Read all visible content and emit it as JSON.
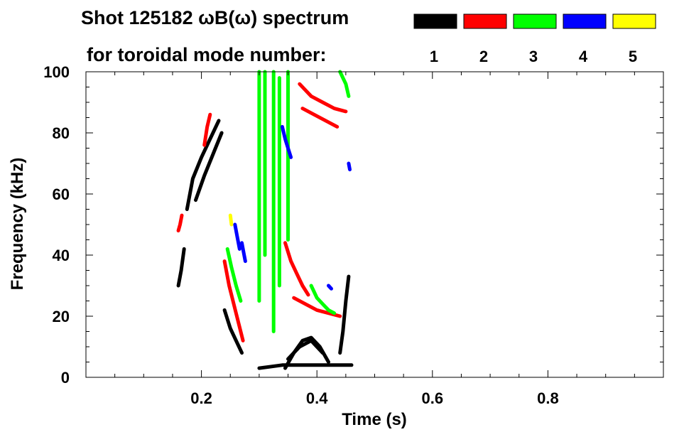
{
  "chart_data": {
    "type": "heatmap",
    "title": "Shot 125182 ωB(ω) spectrum",
    "subtitle": "for toroidal mode number:",
    "xlabel": "Time (s)",
    "ylabel": "Frequency (kHz)",
    "xlim": [
      0.0,
      1.0
    ],
    "ylim": [
      0,
      100
    ],
    "x_ticks": [
      0.2,
      0.4,
      0.6,
      0.8
    ],
    "x_tick_labels": [
      "0.2",
      "0.4",
      "0.6",
      "0.8"
    ],
    "y_ticks": [
      0,
      20,
      40,
      60,
      80,
      100
    ],
    "y_tick_labels": [
      "0",
      "20",
      "40",
      "60",
      "80",
      "100"
    ],
    "grid": false,
    "legend_position": "top-right",
    "legend": [
      {
        "label": "1",
        "color": "#000000"
      },
      {
        "label": "2",
        "color": "#ff0000"
      },
      {
        "label": "3",
        "color": "#00ff00"
      },
      {
        "label": "4",
        "color": "#0000ff"
      },
      {
        "label": "5",
        "color": "#ffff00"
      }
    ],
    "series": [
      {
        "mode": "1",
        "color": "#000000",
        "segments": [
          {
            "x": [
              0.16,
              0.165,
              0.17
            ],
            "y": [
              30,
              35,
              42
            ]
          },
          {
            "x": [
              0.175,
              0.185,
              0.2,
              0.215,
              0.23
            ],
            "y": [
              55,
              65,
              72,
              78,
              84
            ]
          },
          {
            "x": [
              0.19,
              0.205,
              0.22,
              0.235
            ],
            "y": [
              58,
              66,
              73,
              80
            ]
          },
          {
            "x": [
              0.24,
              0.25,
              0.26,
              0.27
            ],
            "y": [
              22,
              16,
              12,
              8
            ]
          },
          {
            "x": [
              0.3,
              0.34,
              0.38,
              0.42,
              0.46
            ],
            "y": [
              3,
              4,
              4,
              4,
              4
            ]
          },
          {
            "x": [
              0.345,
              0.36,
              0.375,
              0.39,
              0.405,
              0.42
            ],
            "y": [
              3,
              8,
              12,
              13,
              10,
              5
            ]
          },
          {
            "x": [
              0.35,
              0.37,
              0.39,
              0.41
            ],
            "y": [
              6,
              10,
              12,
              8
            ]
          },
          {
            "x": [
              0.44,
              0.445,
              0.45,
              0.455
            ],
            "y": [
              8,
              15,
              25,
              33
            ]
          }
        ]
      },
      {
        "mode": "2",
        "color": "#ff0000",
        "segments": [
          {
            "x": [
              0.16,
              0.163,
              0.166
            ],
            "y": [
              48,
              50,
              53
            ]
          },
          {
            "x": [
              0.205,
              0.21,
              0.215
            ],
            "y": [
              76,
              82,
              86
            ]
          },
          {
            "x": [
              0.24,
              0.248,
              0.256,
              0.264,
              0.272
            ],
            "y": [
              38,
              30,
              24,
              18,
              12
            ]
          },
          {
            "x": [
              0.345,
              0.355,
              0.365,
              0.375,
              0.385
            ],
            "y": [
              44,
              38,
              34,
              30,
              27
            ]
          },
          {
            "x": [
              0.36,
              0.38,
              0.4,
              0.42,
              0.44
            ],
            "y": [
              26,
              24,
              22,
              21,
              20
            ]
          },
          {
            "x": [
              0.37,
              0.39,
              0.41,
              0.43,
              0.45
            ],
            "y": [
              96,
              92,
              90,
              88,
              87
            ]
          },
          {
            "x": [
              0.375,
              0.395,
              0.415,
              0.435
            ],
            "y": [
              88,
              86,
              84,
              82
            ]
          }
        ]
      },
      {
        "mode": "3",
        "color": "#00ff00",
        "segments": [
          {
            "x": [
              0.245,
              0.252,
              0.26,
              0.268
            ],
            "y": [
              42,
              36,
              30,
              25
            ]
          },
          {
            "x": [
              0.3,
              0.3,
              0.3
            ],
            "y": [
              100,
              60,
              25
            ]
          },
          {
            "x": [
              0.31,
              0.31,
              0.31
            ],
            "y": [
              100,
              70,
              40
            ]
          },
          {
            "x": [
              0.325,
              0.325,
              0.325
            ],
            "y": [
              100,
              55,
              15
            ]
          },
          {
            "x": [
              0.335,
              0.335,
              0.335
            ],
            "y": [
              98,
              70,
              30
            ]
          },
          {
            "x": [
              0.35,
              0.35,
              0.35
            ],
            "y": [
              100,
              75,
              45
            ]
          },
          {
            "x": [
              0.39,
              0.4,
              0.41,
              0.42,
              0.43
            ],
            "y": [
              30,
              26,
              24,
              22,
              21
            ]
          },
          {
            "x": [
              0.44,
              0.45,
              0.455
            ],
            "y": [
              100,
              96,
              92
            ]
          }
        ]
      },
      {
        "mode": "4",
        "color": "#0000ff",
        "segments": [
          {
            "x": [
              0.34,
              0.345,
              0.35,
              0.355
            ],
            "y": [
              82,
              78,
              75,
              72
            ]
          },
          {
            "x": [
              0.258,
              0.262,
              0.266
            ],
            "y": [
              50,
              46,
              42
            ]
          },
          {
            "x": [
              0.27,
              0.273,
              0.276
            ],
            "y": [
              44,
              41,
              38
            ]
          },
          {
            "x": [
              0.42,
              0.425
            ],
            "y": [
              30,
              29
            ]
          },
          {
            "x": [
              0.455,
              0.457
            ],
            "y": [
              70,
              68
            ]
          }
        ]
      },
      {
        "mode": "5",
        "color": "#ffff00",
        "segments": [
          {
            "x": [
              0.25,
              0.252
            ],
            "y": [
              53,
              50
            ]
          }
        ]
      }
    ]
  }
}
